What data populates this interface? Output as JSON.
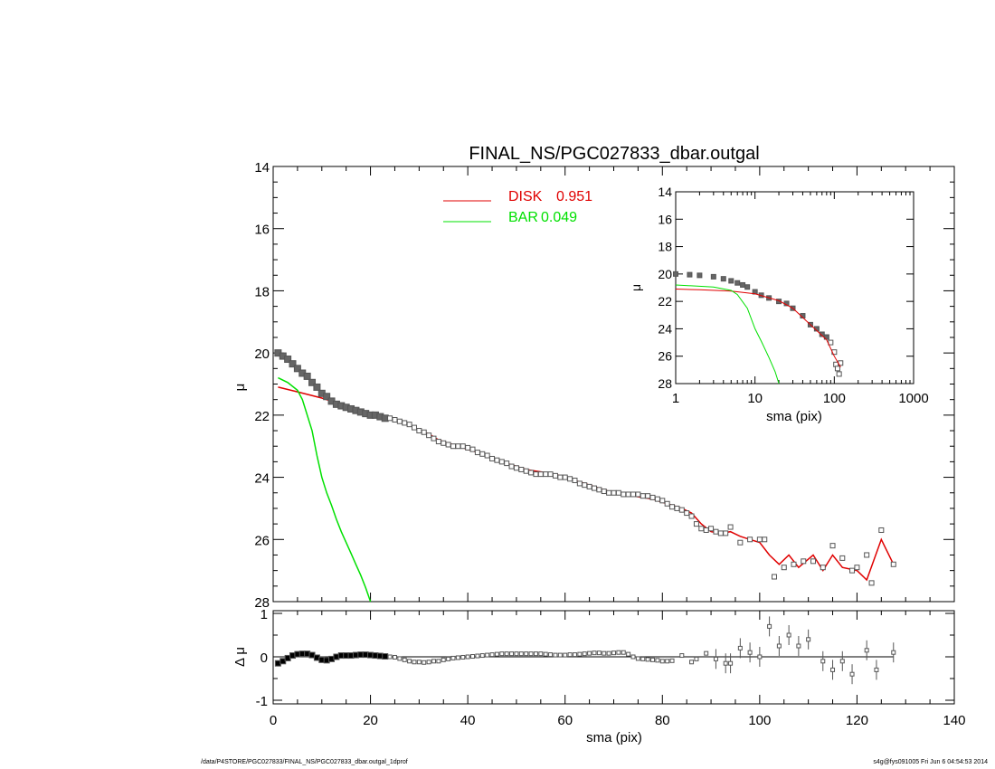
{
  "footer": {
    "left": "/data/P4STORE/PGC027833/FINAL_NS/PGC027833_dbar.outgal_1dprof",
    "right": "s4g@fys091005  Fri Jun  6 04:54:53 2014"
  },
  "colors": {
    "disk": "#e00000",
    "bar": "#00e000",
    "data": "#555555",
    "axes": "#000000"
  },
  "chart_data": [
    {
      "type": "scatter",
      "panel": "main",
      "title": "FINAL_NS/PGC027833_dbar.outgal",
      "xlabel": "",
      "ylabel": "μ",
      "xlim": [
        0,
        140
      ],
      "ylim": [
        28,
        14
      ],
      "y_inverted": true,
      "x_ticks": [
        "0",
        "20",
        "40",
        "60",
        "80",
        "100",
        "120",
        "140"
      ],
      "y_ticks": [
        "14",
        "16",
        "18",
        "20",
        "22",
        "24",
        "26",
        "28"
      ],
      "legend": {
        "placement": "top-center",
        "entries": [
          {
            "name": "DISK",
            "value": "0.951",
            "color": "#e00000"
          },
          {
            "name": "BAR",
            "value": "0.049",
            "color": "#00e000"
          }
        ]
      },
      "series": [
        {
          "name": "DISK",
          "kind": "line",
          "color": "#e00000",
          "x": [
            1,
            5,
            10,
            15,
            18,
            20,
            22,
            24,
            26,
            28,
            30,
            32,
            34,
            36,
            38,
            40,
            42,
            44,
            46,
            48,
            50,
            52,
            54,
            56,
            58,
            60,
            62,
            64,
            66,
            68,
            70,
            72,
            74,
            76,
            78,
            80,
            82,
            84,
            86,
            88,
            90,
            92,
            94,
            96,
            98,
            100,
            102,
            104,
            106,
            108,
            111,
            113,
            115,
            117,
            120,
            122,
            125,
            127.5
          ],
          "y": [
            21.1,
            21.25,
            21.45,
            21.7,
            21.85,
            21.95,
            22.05,
            22.1,
            22.2,
            22.3,
            22.5,
            22.6,
            22.8,
            22.9,
            23.0,
            23.1,
            23.2,
            23.3,
            23.45,
            23.55,
            23.65,
            23.75,
            23.8,
            23.85,
            23.9,
            24.0,
            24.1,
            24.2,
            24.3,
            24.4,
            24.5,
            24.55,
            24.6,
            24.65,
            24.7,
            24.8,
            24.9,
            25.0,
            25.15,
            25.5,
            25.75,
            25.8,
            25.75,
            25.9,
            26.0,
            26.1,
            26.5,
            26.8,
            26.5,
            26.9,
            26.5,
            27.0,
            26.5,
            26.9,
            27.0,
            27.3,
            26.0,
            26.8
          ]
        },
        {
          "name": "BAR",
          "kind": "line",
          "color": "#00e000",
          "x": [
            1,
            3,
            5,
            6,
            8,
            9,
            10,
            11,
            12,
            13,
            14,
            15,
            16,
            17,
            18,
            19,
            20
          ],
          "y": [
            20.8,
            20.95,
            21.2,
            21.5,
            22.5,
            23.3,
            24.0,
            24.5,
            24.9,
            25.35,
            25.75,
            26.1,
            26.45,
            26.8,
            27.15,
            27.55,
            28.0
          ]
        },
        {
          "name": "data",
          "kind": "points",
          "color": "#555555",
          "x": [
            1,
            2,
            3,
            4,
            5,
            6,
            7,
            8,
            9,
            10,
            11,
            12,
            13,
            14,
            15,
            16,
            17,
            18,
            19,
            20,
            21,
            22,
            23,
            24,
            25,
            26,
            27,
            28,
            29,
            30,
            31,
            32,
            33,
            34,
            35,
            36,
            37,
            38,
            39,
            40,
            41,
            42,
            43,
            44,
            45,
            46,
            47,
            48,
            49,
            50,
            51,
            52,
            53,
            54,
            55,
            56,
            57,
            58,
            59,
            60,
            61,
            62,
            63,
            64,
            65,
            66,
            67,
            68,
            69,
            70,
            71,
            72,
            73,
            74,
            75,
            76,
            77,
            78,
            79,
            80,
            81,
            82,
            83,
            84,
            85,
            86,
            87,
            88,
            89,
            90,
            91,
            92,
            93,
            94,
            96,
            98,
            100,
            101,
            103,
            105,
            107,
            109,
            111,
            113,
            115,
            117,
            119,
            120,
            122,
            123,
            125,
            127.5
          ],
          "y": [
            20.0,
            20.1,
            20.2,
            20.35,
            20.5,
            20.65,
            20.75,
            20.95,
            21.1,
            21.3,
            21.4,
            21.55,
            21.65,
            21.7,
            21.75,
            21.8,
            21.85,
            21.9,
            21.95,
            22.0,
            22.0,
            22.05,
            22.1,
            22.1,
            22.15,
            22.2,
            22.25,
            22.3,
            22.4,
            22.5,
            22.55,
            22.65,
            22.75,
            22.85,
            22.9,
            22.95,
            23.0,
            23.0,
            23.0,
            23.05,
            23.1,
            23.2,
            23.25,
            23.3,
            23.4,
            23.45,
            23.5,
            23.55,
            23.65,
            23.7,
            23.75,
            23.8,
            23.85,
            23.9,
            23.9,
            23.9,
            23.9,
            23.95,
            24.0,
            24.0,
            24.05,
            24.1,
            24.2,
            24.25,
            24.3,
            24.35,
            24.4,
            24.45,
            24.5,
            24.5,
            24.5,
            24.55,
            24.55,
            24.55,
            24.55,
            24.6,
            24.6,
            24.65,
            24.7,
            24.75,
            24.85,
            24.95,
            25.0,
            25.05,
            25.15,
            25.25,
            25.5,
            25.65,
            25.7,
            25.65,
            25.75,
            25.8,
            25.8,
            25.6,
            26.1,
            26.0,
            26.0,
            26.0,
            27.2,
            26.9,
            26.8,
            26.7,
            26.7,
            26.9,
            26.2,
            26.6,
            27.0,
            26.9,
            26.5,
            27.4,
            25.7,
            26.8
          ]
        }
      ]
    },
    {
      "type": "line",
      "panel": "inset",
      "xlabel": "sma (pix)",
      "ylabel": "μ",
      "x_scale": "log",
      "xlim": [
        1,
        1000
      ],
      "ylim": [
        28,
        14
      ],
      "y_inverted": true,
      "x_ticks": [
        "1",
        "10",
        "100",
        "1000"
      ],
      "y_ticks": [
        "14",
        "16",
        "18",
        "20",
        "22",
        "24",
        "26",
        "28"
      ],
      "series": [
        {
          "name": "data",
          "kind": "points",
          "color": "#555555",
          "x": [
            1,
            1.5,
            2,
            3,
            4,
            5,
            6,
            7,
            8,
            10,
            12,
            15,
            20,
            25,
            30,
            40,
            50,
            60,
            70,
            80,
            90,
            100,
            105,
            110,
            115,
            120
          ],
          "y": [
            20.0,
            20.05,
            20.1,
            20.2,
            20.35,
            20.5,
            20.65,
            20.8,
            20.95,
            21.3,
            21.55,
            21.75,
            22.0,
            22.15,
            22.5,
            23.05,
            23.7,
            24.0,
            24.4,
            24.6,
            25.0,
            25.7,
            26.6,
            26.9,
            27.3,
            26.5
          ]
        },
        {
          "name": "DISK",
          "kind": "line",
          "color": "#e00000",
          "x": [
            1,
            2,
            5,
            10,
            20,
            30,
            50,
            80,
            100,
            120
          ],
          "y": [
            21.1,
            21.15,
            21.25,
            21.45,
            21.95,
            22.5,
            23.7,
            24.8,
            26.0,
            26.8
          ]
        },
        {
          "name": "BAR",
          "kind": "line",
          "color": "#00e000",
          "x": [
            1,
            3,
            5,
            6,
            8,
            10,
            12,
            15,
            18,
            20
          ],
          "y": [
            20.8,
            20.95,
            21.2,
            21.5,
            22.5,
            24.0,
            24.9,
            26.1,
            27.15,
            28.0
          ]
        }
      ]
    },
    {
      "type": "scatter",
      "panel": "residual",
      "xlabel": "sma (pix)",
      "ylabel": "Δ μ",
      "xlim": [
        0,
        140
      ],
      "ylim": [
        -1,
        1
      ],
      "x_ticks": [
        "0",
        "20",
        "40",
        "60",
        "80",
        "100",
        "120",
        "140"
      ],
      "y_ticks": [
        "1",
        "0",
        "-1"
      ],
      "series": [
        {
          "name": "residual",
          "kind": "points",
          "color": "#555555",
          "x": [
            1,
            2,
            3,
            4,
            5,
            6,
            7,
            8,
            9,
            10,
            11,
            12,
            13,
            14,
            15,
            16,
            17,
            18,
            19,
            20,
            21,
            22,
            23,
            24,
            25,
            26,
            27,
            28,
            29,
            30,
            31,
            32,
            33,
            34,
            35,
            36,
            37,
            38,
            39,
            40,
            41,
            42,
            43,
            44,
            45,
            46,
            47,
            48,
            49,
            50,
            51,
            52,
            53,
            54,
            55,
            56,
            57,
            58,
            59,
            60,
            61,
            62,
            63,
            64,
            65,
            66,
            67,
            68,
            69,
            70,
            71,
            72,
            73,
            74,
            75,
            76,
            77,
            78,
            79,
            80,
            81,
            82,
            84,
            86,
            87,
            89,
            91,
            93,
            94,
            96,
            98,
            100,
            102,
            104,
            106,
            108,
            110,
            113,
            115,
            117,
            119,
            122,
            124,
            127.5
          ],
          "y": [
            -0.15,
            -0.1,
            -0.03,
            0.03,
            0.06,
            0.07,
            0.07,
            0.04,
            -0.02,
            -0.07,
            -0.08,
            -0.05,
            0.0,
            0.03,
            0.03,
            0.03,
            0.04,
            0.05,
            0.05,
            0.04,
            0.03,
            0.02,
            0.01,
            0.0,
            -0.01,
            -0.04,
            -0.07,
            -0.1,
            -0.12,
            -0.12,
            -0.13,
            -0.12,
            -0.1,
            -0.1,
            -0.07,
            -0.05,
            -0.03,
            -0.02,
            -0.01,
            0.0,
            0.01,
            0.02,
            0.03,
            0.04,
            0.05,
            0.06,
            0.07,
            0.07,
            0.07,
            0.07,
            0.07,
            0.07,
            0.07,
            0.07,
            0.07,
            0.06,
            0.05,
            0.04,
            0.04,
            0.04,
            0.05,
            0.05,
            0.06,
            0.07,
            0.08,
            0.09,
            0.09,
            0.08,
            0.08,
            0.09,
            0.1,
            0.1,
            0.06,
            0.0,
            -0.04,
            -0.05,
            -0.06,
            -0.07,
            -0.08,
            -0.1,
            -0.1,
            -0.09,
            0.03,
            -0.12,
            -0.05,
            0.08,
            -0.05,
            -0.15,
            -0.15,
            0.2,
            0.1,
            0.0,
            0.7,
            0.25,
            0.5,
            0.25,
            0.4,
            -0.1,
            -0.3,
            -0.1,
            -0.4,
            0.15,
            -0.3,
            0.1
          ],
          "error_bars": true
        }
      ]
    }
  ]
}
